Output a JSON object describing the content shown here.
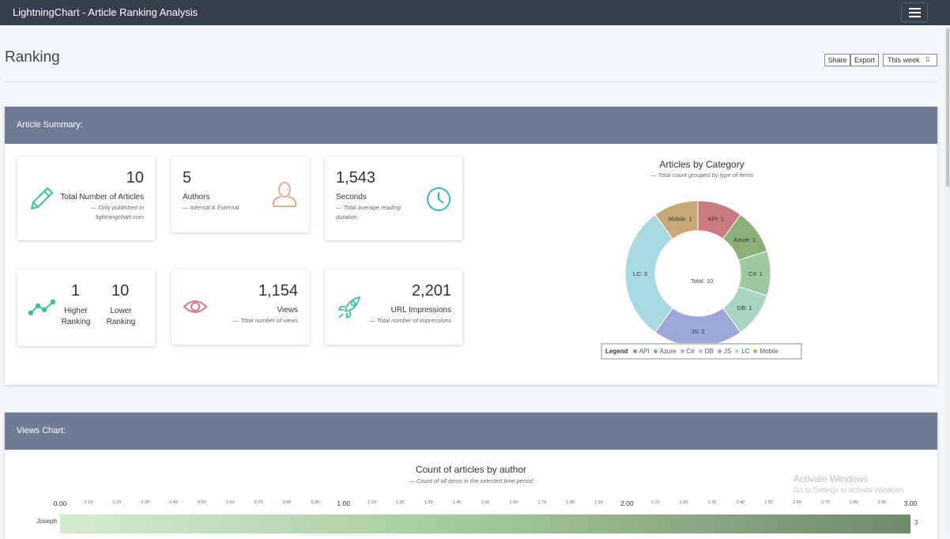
{
  "app": {
    "title": "LightningChart - Article Ranking Analysis"
  },
  "page": {
    "title": "Ranking"
  },
  "toolbar": {
    "share_label": "Share",
    "export_label": "Export",
    "period_label": "This week"
  },
  "summary": {
    "header": "Article Summary:",
    "cards": {
      "articles": {
        "value": "10",
        "label": "Total Number of Articles",
        "sub1": "— Only published in",
        "sub2": "lightningchart.com"
      },
      "authors": {
        "value": "5",
        "label": "Authors",
        "sub": "— Internal & External"
      },
      "seconds": {
        "value": "1,543",
        "label": "Seconds",
        "sub1": "— Total average reading",
        "sub2": "duration"
      },
      "ranking": {
        "higher_value": "1",
        "higher_label1": "Higher",
        "higher_label2": "Ranking",
        "lower_value": "10",
        "lower_label1": "Lower",
        "lower_label2": "Ranking"
      },
      "views": {
        "value": "1,154",
        "label": "Views",
        "sub": "— Total number of views"
      },
      "impressions": {
        "value": "2,201",
        "label": "URL Impressions",
        "sub": "— Total number of impressions"
      }
    }
  },
  "category_chart": {
    "title": "Articles by Category",
    "subtitle": "— Total count grouped by type of items",
    "center_label": "Total: 10",
    "legend_title": "Legend"
  },
  "views_section": {
    "header": "Views Chart:"
  },
  "watermark": {
    "line1": "Activate Windows",
    "line2": "Go to Settings to activate Windows"
  },
  "chart_data": [
    {
      "type": "pie",
      "title": "Articles by Category",
      "subtitle": "— Total count grouped by type of items",
      "total_label": "Total: 10",
      "categories": [
        "API",
        "Azure",
        "C#",
        "DB",
        "JS",
        "LC",
        "Mobile"
      ],
      "values": [
        1,
        1,
        1,
        1,
        2,
        3,
        1
      ],
      "labels": [
        "API: 1",
        "Azure: 1",
        "C#: 1",
        "DB: 1",
        "JS: 2",
        "LC: 3",
        "Mobile: 1"
      ],
      "colors": [
        "#c97b80",
        "#8aaf78",
        "#a0c8a0",
        "#a8d4c0",
        "#9ea8d8",
        "#a8d8e0",
        "#c9a878"
      ],
      "legend": "bottom"
    },
    {
      "type": "bar",
      "orientation": "horizontal",
      "title": "Count of articles by author",
      "subtitle": "— Count of all items in the selected time period",
      "categories": [
        "Joseph"
      ],
      "values": [
        3
      ],
      "value_labels": [
        "3"
      ],
      "xlim": [
        0,
        3
      ],
      "major_ticks": [
        "0.00",
        "1.00",
        "2.00",
        "3.00"
      ],
      "minor_ticks": [
        "0.10",
        "0.20",
        "0.30",
        "0.40",
        "0.50",
        "0.60",
        "0.70",
        "0.80",
        "0.90",
        "1.10",
        "1.20",
        "1.30",
        "1.40",
        "1.50",
        "1.60",
        "1.70",
        "1.80",
        "1.90",
        "2.10",
        "2.20",
        "2.30",
        "2.40",
        "2.50",
        "2.60",
        "2.70",
        "2.80",
        "2.90"
      ]
    }
  ]
}
